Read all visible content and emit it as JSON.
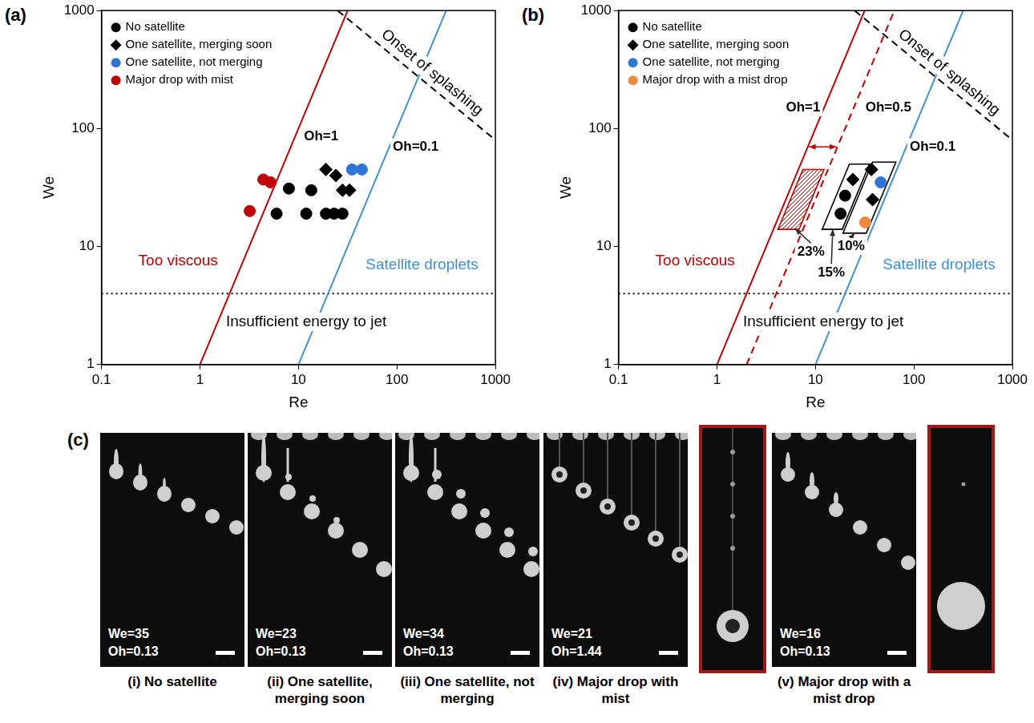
{
  "chart_data": [
    {
      "type": "scatter",
      "panel_label": "(a)",
      "x_label": "Re",
      "y_label": "We",
      "log": true,
      "grid": false,
      "legend": "upper left",
      "xlim": [
        0.1,
        1000
      ],
      "ylim": [
        1,
        1000
      ],
      "xticks": [
        0.1,
        1,
        10,
        100,
        1000
      ],
      "yticks": [
        1,
        10,
        100,
        1000
      ],
      "series": [
        {
          "name": "No satellite",
          "color": "#000000",
          "marker": "circle",
          "x": [
            6,
            8,
            12,
            13.5,
            19,
            23,
            28
          ],
          "y": [
            19,
            31,
            19,
            30,
            19,
            19,
            19
          ]
        },
        {
          "name": "One satellite, merging soon",
          "color": "#000000",
          "marker": "diamond",
          "x": [
            19,
            24,
            28,
            33
          ],
          "y": [
            45,
            40,
            30,
            30
          ]
        },
        {
          "name": "One satellite, not merging",
          "color": "#2e75d6",
          "marker": "circle",
          "x": [
            35,
            44
          ],
          "y": [
            45,
            45
          ]
        },
        {
          "name": "Major drop with mist",
          "color": "#c00000",
          "marker": "circle",
          "x": [
            3.2,
            4.4,
            5.2
          ],
          "y": [
            20,
            37,
            35
          ]
        }
      ],
      "lines": [
        {
          "name": "Oh=1",
          "color": "#c00000",
          "line_style": "solid",
          "x": [
            1,
            31.6
          ],
          "y": [
            1,
            1000
          ],
          "label_at": [
            17,
            85
          ]
        },
        {
          "name": "Oh=0.1",
          "color": "#3d8fd9",
          "line_style": "solid",
          "x": [
            10,
            316
          ],
          "y": [
            1,
            1000
          ],
          "label_at": [
            155,
            70
          ]
        },
        {
          "name": "Onset of splashing",
          "color": "#000000",
          "line_style": "dashed",
          "x": [
            25,
            1000
          ],
          "y": [
            1000,
            80
          ],
          "label_at": [
            190,
            249
          ]
        },
        {
          "name": "Insufficient energy to jet",
          "color": "#000000",
          "line_style": "dotted",
          "x": [
            0.1,
            1000
          ],
          "y": [
            4,
            4
          ],
          "label_at": [
            12,
            2.3
          ]
        }
      ],
      "annotations": [
        {
          "text": "Too viscous",
          "x": 0.6,
          "y": 7.5,
          "color": "#c00000"
        },
        {
          "text": "Satellite droplets",
          "x": 180,
          "y": 7,
          "color": "#3d8fd9"
        }
      ]
    },
    {
      "type": "scatter",
      "panel_label": "(b)",
      "x_label": "Re",
      "y_label": "We",
      "log": true,
      "grid": false,
      "legend": "upper left",
      "xlim": [
        0.1,
        1000
      ],
      "ylim": [
        1,
        1000
      ],
      "xticks": [
        0.1,
        1,
        10,
        100,
        1000
      ],
      "yticks": [
        1,
        10,
        100,
        1000
      ],
      "series": [
        {
          "name": "No satellite",
          "color": "#000000",
          "marker": "circle",
          "x": [
            18,
            20
          ],
          "y": [
            19,
            27
          ]
        },
        {
          "name": "One satellite, merging soon",
          "color": "#000000",
          "marker": "diamond",
          "x": [
            24,
            37,
            38
          ],
          "y": [
            37,
            45,
            25
          ]
        },
        {
          "name": "One satellite, not merging",
          "color": "#2e75d6",
          "marker": "circle",
          "x": [
            46
          ],
          "y": [
            35
          ]
        },
        {
          "name": "Major drop with a mist drop",
          "color": "#f0883e",
          "marker": "circle",
          "x": [
            32
          ],
          "y": [
            16
          ]
        }
      ],
      "lines": [
        {
          "name": "Oh=1",
          "color": "#c00000",
          "line_style": "solid",
          "x": [
            1,
            31.6
          ],
          "y": [
            1,
            1000
          ],
          "label_at": [
            7.5,
            150
          ]
        },
        {
          "name": "Oh=0.5",
          "color": "#c00000",
          "line_style": "dashed",
          "x": [
            2,
            63.2
          ],
          "y": [
            1,
            1000
          ],
          "label_at": [
            55,
            150
          ]
        },
        {
          "name": "Oh=0.1",
          "color": "#3d8fd9",
          "line_style": "solid",
          "x": [
            10,
            316
          ],
          "y": [
            1,
            1000
          ],
          "label_at": [
            155,
            70
          ]
        },
        {
          "name": "Onset of splashing",
          "color": "#000000",
          "line_style": "dashed",
          "x": [
            25,
            1000
          ],
          "y": [
            1000,
            80
          ],
          "label_at": [
            190,
            249
          ]
        },
        {
          "name": "Insufficient energy to jet",
          "color": "#000000",
          "line_style": "dotted",
          "x": [
            0.1,
            1000
          ],
          "y": [
            4,
            4
          ],
          "label_at": [
            12,
            2.3
          ]
        }
      ],
      "regions": [
        {
          "color": "#c00000",
          "corners": [
            [
              4.16,
              14
            ],
            [
              6.8,
              14
            ],
            [
              12.2,
              45
            ],
            [
              7.45,
              45
            ]
          ]
        },
        {
          "color": "#000000",
          "corners": [
            [
              11.7,
              14
            ],
            [
              18.7,
              14
            ],
            [
              35.4,
              50
            ],
            [
              22.1,
              50
            ]
          ]
        },
        {
          "color": "#000000",
          "corners": [
            [
              19.0,
              13
            ],
            [
              32.8,
              13
            ],
            [
              65.6,
              52
            ],
            [
              38.0,
              52
            ]
          ]
        }
      ],
      "range_arrow": {
        "color": "#c00000",
        "x": [
          8.6,
          16.3
        ],
        "y": [
          70,
          70
        ]
      },
      "annotations": [
        {
          "text": "Too viscous",
          "x": 0.6,
          "y": 7.5,
          "color": "#c00000"
        },
        {
          "text": "Satellite droplets",
          "x": 180,
          "y": 7,
          "color": "#3d8fd9"
        },
        {
          "text": "23%",
          "x": 9,
          "y": 9,
          "color": "#000000",
          "arrow_to": [
            6.2,
            14.2
          ]
        },
        {
          "text": "15%",
          "x": 14.5,
          "y": 6,
          "color": "#000000",
          "arrow_to": [
            15,
            14
          ]
        },
        {
          "text": "10%",
          "x": 23,
          "y": 10,
          "color": "#000000",
          "arrow_to": [
            25,
            13
          ]
        }
      ]
    }
  ],
  "image_panel": {
    "label": "(c)",
    "frames": [
      {
        "text": [
          "We=35",
          "Oh=0.13"
        ],
        "caption": "(i) No satellite"
      },
      {
        "text": [
          "We=23",
          "Oh=0.13"
        ],
        "caption": "(ii) One satellite, merging soon"
      },
      {
        "text": [
          "We=34",
          "Oh=0.13"
        ],
        "caption": "(iii) One satellite, not merging"
      },
      {
        "text": [
          "We=21",
          "Oh=1.44"
        ],
        "caption": "(iv) Major drop with mist",
        "inset": true
      },
      {
        "text": [
          "We=16",
          "Oh=0.13"
        ],
        "caption": "(v) Major drop with a mist drop",
        "inset": true
      }
    ]
  }
}
